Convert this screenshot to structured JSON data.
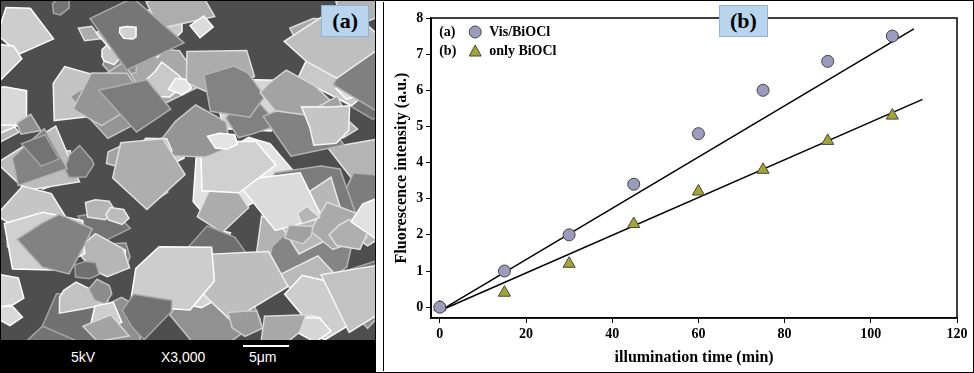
{
  "panel_a": {
    "type": "image",
    "label": "(a)",
    "info_bar": {
      "voltage": "5kV",
      "magnification": "X3,000",
      "scale": "5μm"
    }
  },
  "chart_data": {
    "type": "scatter",
    "annotation": "(b)",
    "x_label": "illumination time (min)",
    "y_label": "Fluorescence intensity (a.u.)",
    "x": [
      0,
      15,
      30,
      45,
      60,
      75,
      90,
      105
    ],
    "series": [
      {
        "name": "Vis/BiOCl",
        "legend_label": "(a)",
        "color": "#9b9bbd",
        "marker": "circle",
        "values": [
          0,
          1.0,
          2.0,
          3.4,
          4.8,
          6.0,
          6.8,
          7.5
        ]
      },
      {
        "name": "only BiOCl",
        "legend_label": "(b)",
        "color": "#a5a631",
        "marker": "triangle",
        "values": [
          0,
          0.4,
          1.2,
          2.3,
          3.2,
          3.8,
          4.6,
          5.3
        ]
      }
    ],
    "fit_lines": [
      {
        "x": [
          0,
          110
        ],
        "values": [
          -0.1,
          7.7
        ]
      },
      {
        "x": [
          0,
          112
        ],
        "values": [
          -0.1,
          5.75
        ]
      }
    ],
    "xlim": [
      -2,
      120
    ],
    "xticks": [
      0,
      20,
      40,
      60,
      80,
      100,
      120
    ],
    "ylim": [
      -0.3,
      8
    ],
    "yticks": [
      0,
      1,
      2,
      3,
      4,
      5,
      6,
      7,
      8
    ],
    "grid": false,
    "legend": "upper left"
  }
}
